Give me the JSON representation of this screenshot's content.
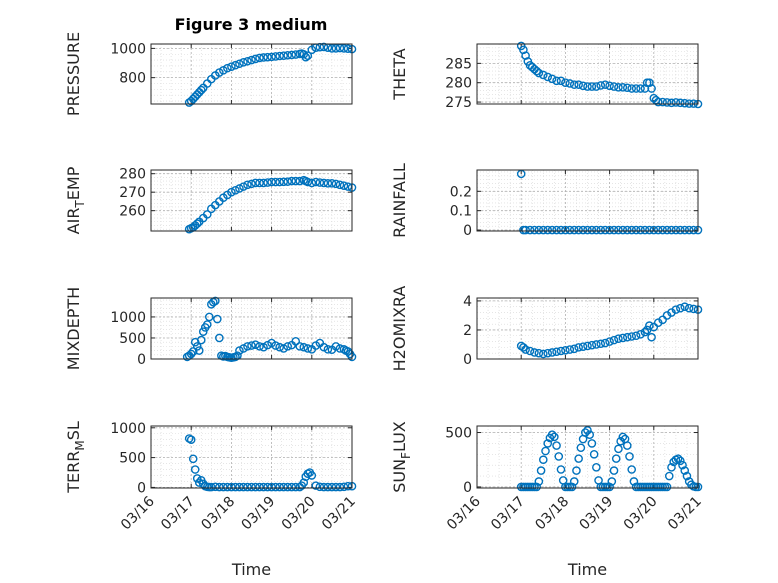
{
  "figure": {
    "title": "Figure 3 medium",
    "xlabel": "Time",
    "x_tick_labels": [
      "03/16",
      "03/17",
      "03/18",
      "03/19",
      "03/20",
      "03/21"
    ],
    "marker_color": "#0072BD",
    "grid_color": "#b0b0b0"
  },
  "chart_data": [
    {
      "type": "scatter",
      "ylabel": "PRESSURE",
      "xlim": [
        0,
        5
      ],
      "ylim": [
        620,
        1030
      ],
      "yticks": [
        800,
        1000
      ],
      "x": [
        0.95,
        1.0,
        1.05,
        1.1,
        1.15,
        1.2,
        1.25,
        1.3,
        1.4,
        1.5,
        1.6,
        1.7,
        1.8,
        1.9,
        2.0,
        2.1,
        2.2,
        2.3,
        2.4,
        2.5,
        2.6,
        2.7,
        2.8,
        2.9,
        3.0,
        3.1,
        3.2,
        3.3,
        3.4,
        3.5,
        3.6,
        3.7,
        3.75,
        3.8,
        3.85,
        3.9,
        4.0,
        4.1,
        4.2,
        4.3,
        4.4,
        4.5,
        4.6,
        4.7,
        4.8,
        4.9,
        5.0
      ],
      "y": [
        630,
        640,
        655,
        670,
        685,
        700,
        715,
        730,
        760,
        790,
        815,
        835,
        850,
        865,
        875,
        885,
        895,
        905,
        912,
        920,
        928,
        935,
        938,
        940,
        942,
        945,
        948,
        950,
        953,
        955,
        958,
        962,
        965,
        960,
        940,
        950,
        990,
        1005,
        1008,
        1010,
        1005,
        1000,
        1000,
        1002,
        1000,
        998,
        995
      ]
    },
    {
      "type": "scatter",
      "ylabel": "THETA",
      "xlim": [
        0,
        5
      ],
      "ylim": [
        274.5,
        290
      ],
      "yticks": [
        275,
        280,
        285
      ],
      "x": [
        1.0,
        1.05,
        1.1,
        1.15,
        1.2,
        1.25,
        1.3,
        1.35,
        1.4,
        1.5,
        1.6,
        1.7,
        1.8,
        1.9,
        2.0,
        2.1,
        2.2,
        2.3,
        2.4,
        2.5,
        2.6,
        2.7,
        2.8,
        2.9,
        3.0,
        3.1,
        3.2,
        3.3,
        3.4,
        3.5,
        3.6,
        3.7,
        3.8,
        3.85,
        3.9,
        3.95,
        4.0,
        4.05,
        4.1,
        4.2,
        4.3,
        4.4,
        4.5,
        4.6,
        4.7,
        4.8,
        4.9,
        5.0
      ],
      "y": [
        289.5,
        288.5,
        287,
        285.5,
        284.5,
        284,
        283.5,
        283,
        282.5,
        282,
        281.5,
        281,
        280.5,
        280.5,
        280,
        279.8,
        279.5,
        279.5,
        279.2,
        279,
        279,
        279,
        279.3,
        279.5,
        279.2,
        279,
        278.8,
        278.8,
        278.7,
        278.5,
        278.5,
        278.5,
        278.5,
        280,
        280,
        278.5,
        276,
        275.5,
        275,
        275,
        274.9,
        274.8,
        274.9,
        274.8,
        274.7,
        274.6,
        274.6,
        274.5
      ]
    },
    {
      "type": "scatter",
      "ylabel": "AIR_TEMP",
      "ylabel_parts": [
        "AIR",
        "T",
        "EMP"
      ],
      "xlim": [
        0,
        5
      ],
      "ylim": [
        249,
        282
      ],
      "yticks": [
        260,
        270,
        280
      ],
      "x": [
        0.95,
        1.0,
        1.05,
        1.1,
        1.15,
        1.2,
        1.3,
        1.4,
        1.5,
        1.6,
        1.7,
        1.8,
        1.9,
        2.0,
        2.1,
        2.2,
        2.3,
        2.4,
        2.5,
        2.6,
        2.7,
        2.8,
        2.9,
        3.0,
        3.1,
        3.2,
        3.3,
        3.4,
        3.5,
        3.6,
        3.7,
        3.8,
        3.85,
        3.9,
        4.0,
        4.1,
        4.2,
        4.3,
        4.4,
        4.5,
        4.6,
        4.7,
        4.8,
        4.9,
        5.0
      ],
      "y": [
        250,
        250.5,
        251,
        252,
        253,
        254,
        256,
        258,
        261,
        263,
        265,
        267,
        268.5,
        270,
        271,
        272,
        273,
        274,
        274.5,
        275,
        275,
        275,
        275.2,
        275.5,
        275.5,
        275.5,
        275.6,
        275.7,
        276,
        276,
        276,
        276.5,
        276,
        275.5,
        275,
        275.5,
        275.2,
        275,
        274.8,
        274.8,
        274.5,
        274,
        273.5,
        273,
        272.5
      ]
    },
    {
      "type": "scatter",
      "ylabel": "RAINFALL",
      "xlim": [
        0,
        5
      ],
      "ylim": [
        -0.005,
        0.31
      ],
      "yticks": [
        0,
        0.1,
        0.2
      ],
      "ytick_labels": [
        "0",
        "0.1",
        "0.2"
      ],
      "x": [
        1.0,
        1.05,
        1.1,
        1.2,
        1.3,
        1.4,
        1.5,
        1.6,
        1.7,
        1.8,
        1.9,
        2.0,
        2.1,
        2.2,
        2.3,
        2.4,
        2.5,
        2.6,
        2.7,
        2.8,
        2.9,
        3.0,
        3.1,
        3.2,
        3.3,
        3.4,
        3.5,
        3.6,
        3.7,
        3.8,
        3.9,
        4.0,
        4.1,
        4.2,
        4.3,
        4.4,
        4.5,
        4.6,
        4.7,
        4.8,
        4.9,
        5.0
      ],
      "y": [
        0.29,
        0,
        0,
        0,
        0,
        0,
        0,
        0,
        0,
        0,
        0,
        0,
        0,
        0,
        0,
        0,
        0,
        0,
        0,
        0,
        0,
        0,
        0,
        0,
        0,
        0,
        0,
        0,
        0,
        0,
        0,
        0,
        0,
        0,
        0,
        0,
        0,
        0,
        0,
        0,
        0,
        0
      ]
    },
    {
      "type": "scatter",
      "ylabel": "MIXDEPTH",
      "xlim": [
        0,
        5
      ],
      "ylim": [
        0,
        1450
      ],
      "yticks": [
        0,
        500,
        1000
      ],
      "x": [
        0.9,
        0.95,
        1.0,
        1.05,
        1.1,
        1.15,
        1.2,
        1.25,
        1.3,
        1.35,
        1.4,
        1.45,
        1.5,
        1.55,
        1.6,
        1.65,
        1.7,
        1.75,
        1.8,
        1.85,
        1.9,
        1.95,
        2.0,
        2.05,
        2.1,
        2.15,
        2.2,
        2.3,
        2.4,
        2.5,
        2.6,
        2.7,
        2.8,
        2.9,
        3.0,
        3.1,
        3.2,
        3.3,
        3.4,
        3.5,
        3.6,
        3.7,
        3.8,
        3.9,
        4.0,
        4.1,
        4.2,
        4.3,
        4.4,
        4.5,
        4.6,
        4.7,
        4.8,
        4.85,
        4.9,
        4.95,
        5.0
      ],
      "y": [
        50,
        80,
        120,
        180,
        400,
        300,
        200,
        450,
        650,
        750,
        820,
        1000,
        1300,
        1350,
        1380,
        950,
        500,
        80,
        60,
        70,
        50,
        40,
        30,
        40,
        50,
        80,
        200,
        250,
        300,
        320,
        340,
        300,
        280,
        330,
        380,
        320,
        280,
        250,
        300,
        330,
        420,
        300,
        280,
        250,
        230,
        320,
        380,
        280,
        230,
        220,
        300,
        250,
        230,
        200,
        180,
        120,
        50
      ]
    },
    {
      "type": "scatter",
      "ylabel": "H2OMIXRA",
      "xlim": [
        0,
        5
      ],
      "ylim": [
        0,
        4.2
      ],
      "yticks": [
        0,
        2,
        4
      ],
      "x": [
        1.0,
        1.05,
        1.1,
        1.2,
        1.3,
        1.4,
        1.5,
        1.6,
        1.7,
        1.8,
        1.9,
        2.0,
        2.1,
        2.2,
        2.3,
        2.4,
        2.5,
        2.6,
        2.7,
        2.8,
        2.9,
        3.0,
        3.1,
        3.2,
        3.3,
        3.4,
        3.5,
        3.6,
        3.7,
        3.8,
        3.85,
        3.9,
        3.95,
        4.0,
        4.1,
        4.2,
        4.3,
        4.4,
        4.5,
        4.6,
        4.7,
        4.8,
        4.9,
        5.0
      ],
      "y": [
        0.9,
        0.8,
        0.65,
        0.55,
        0.45,
        0.4,
        0.35,
        0.4,
        0.45,
        0.5,
        0.55,
        0.6,
        0.65,
        0.7,
        0.8,
        0.85,
        0.9,
        0.95,
        1.0,
        1.05,
        1.1,
        1.2,
        1.3,
        1.4,
        1.45,
        1.5,
        1.55,
        1.6,
        1.7,
        1.85,
        2.0,
        2.3,
        1.5,
        2.2,
        2.5,
        2.7,
        3.0,
        3.2,
        3.4,
        3.5,
        3.6,
        3.5,
        3.45,
        3.4
      ]
    },
    {
      "type": "scatter",
      "ylabel": "TERR_MSL",
      "ylabel_parts": [
        "TERR",
        "M",
        "SL"
      ],
      "xlim": [
        0,
        5
      ],
      "ylim": [
        -10,
        1030
      ],
      "yticks": [
        0,
        500,
        1000
      ],
      "x": [
        0.95,
        1.0,
        1.05,
        1.1,
        1.15,
        1.2,
        1.25,
        1.3,
        1.35,
        1.4,
        1.45,
        1.5,
        1.6,
        1.7,
        1.8,
        1.9,
        2.0,
        2.1,
        2.2,
        2.3,
        2.4,
        2.5,
        2.6,
        2.7,
        2.8,
        2.9,
        3.0,
        3.1,
        3.2,
        3.3,
        3.4,
        3.5,
        3.6,
        3.7,
        3.75,
        3.8,
        3.85,
        3.9,
        3.95,
        4.0,
        4.1,
        4.2,
        4.3,
        4.4,
        4.5,
        4.6,
        4.7,
        4.8,
        4.9,
        5.0
      ],
      "y": [
        820,
        800,
        480,
        300,
        150,
        80,
        120,
        60,
        20,
        10,
        5,
        5,
        10,
        5,
        5,
        5,
        5,
        5,
        5,
        5,
        5,
        5,
        5,
        5,
        5,
        5,
        5,
        5,
        5,
        5,
        5,
        5,
        5,
        5,
        30,
        80,
        180,
        230,
        250,
        200,
        30,
        10,
        5,
        5,
        5,
        5,
        5,
        10,
        20,
        20
      ]
    },
    {
      "type": "scatter",
      "ylabel": "SUN_FLUX",
      "ylabel_parts": [
        "SUN",
        "F",
        "LUX"
      ],
      "xlim": [
        0,
        5
      ],
      "ylim": [
        -10,
        560
      ],
      "yticks": [
        0,
        500
      ],
      "x": [
        1.0,
        1.05,
        1.1,
        1.15,
        1.2,
        1.25,
        1.3,
        1.35,
        1.4,
        1.45,
        1.5,
        1.55,
        1.6,
        1.65,
        1.7,
        1.75,
        1.8,
        1.85,
        1.9,
        1.95,
        2.0,
        2.05,
        2.1,
        2.15,
        2.2,
        2.25,
        2.3,
        2.35,
        2.4,
        2.45,
        2.5,
        2.55,
        2.6,
        2.65,
        2.7,
        2.75,
        2.8,
        2.85,
        2.9,
        2.95,
        3.0,
        3.05,
        3.1,
        3.15,
        3.2,
        3.25,
        3.3,
        3.35,
        3.4,
        3.45,
        3.5,
        3.55,
        3.6,
        3.65,
        3.7,
        3.75,
        3.8,
        3.85,
        3.9,
        3.95,
        4.0,
        4.05,
        4.1,
        4.15,
        4.2,
        4.25,
        4.3,
        4.35,
        4.4,
        4.45,
        4.5,
        4.55,
        4.6,
        4.65,
        4.7,
        4.75,
        4.8,
        4.85,
        4.9,
        4.95,
        5.0
      ],
      "y": [
        0,
        0,
        0,
        0,
        0,
        0,
        0,
        0,
        50,
        150,
        250,
        330,
        400,
        450,
        480,
        460,
        380,
        280,
        160,
        60,
        0,
        0,
        0,
        0,
        50,
        150,
        260,
        360,
        440,
        500,
        520,
        480,
        400,
        300,
        180,
        60,
        0,
        0,
        0,
        0,
        0,
        50,
        150,
        260,
        350,
        420,
        460,
        440,
        380,
        280,
        160,
        50,
        0,
        0,
        0,
        0,
        0,
        0,
        0,
        0,
        0,
        0,
        0,
        0,
        0,
        0,
        0,
        100,
        180,
        230,
        250,
        260,
        240,
        200,
        150,
        100,
        50,
        20,
        5,
        0,
        0
      ]
    }
  ]
}
